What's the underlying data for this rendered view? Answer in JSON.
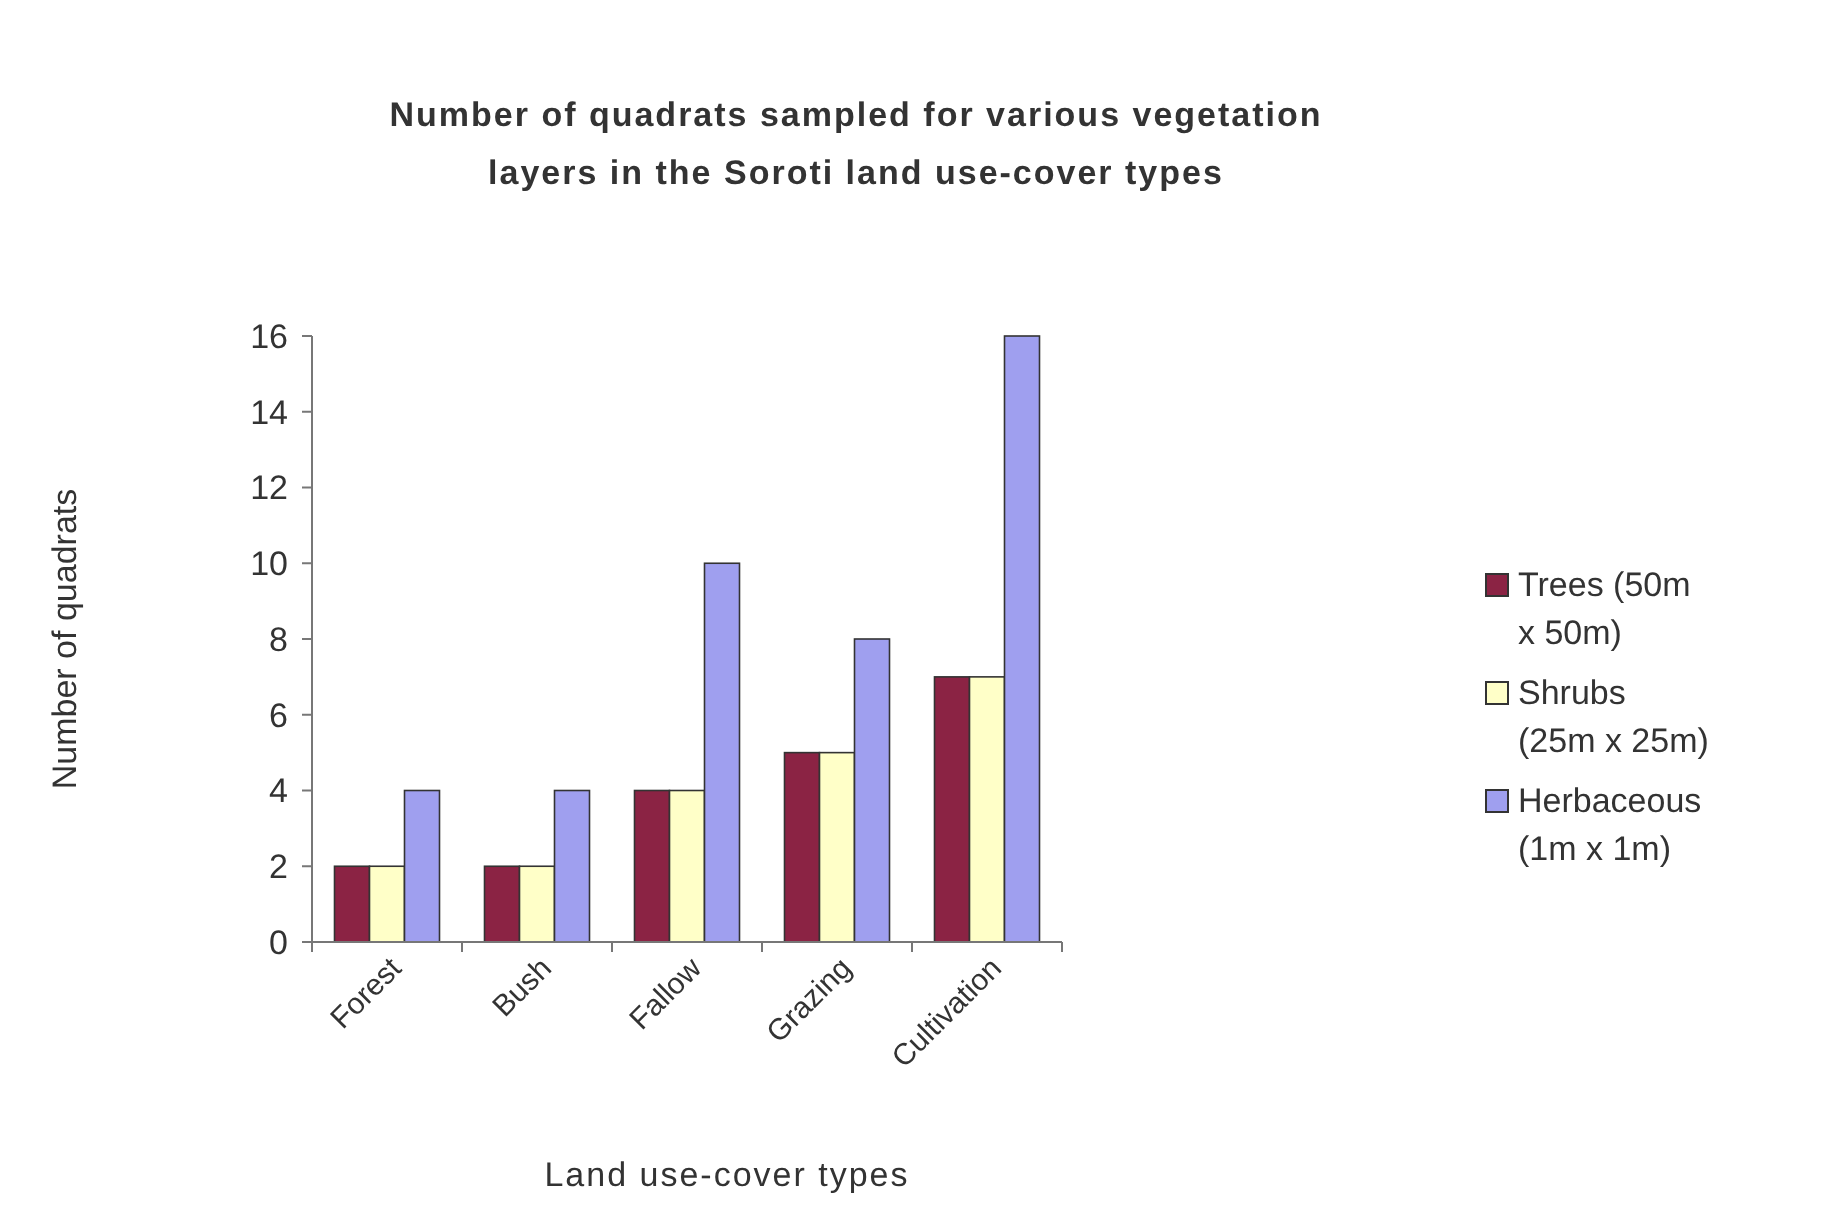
{
  "chart_data": {
    "type": "bar",
    "title": "Number of quadrats sampled for various vegetation layers in the Soroti land use-cover types",
    "xlabel": "Land use-cover types",
    "ylabel": "Number of quadrats",
    "categories": [
      "Forest",
      "Bush",
      "Fallow",
      "Grazing",
      "Cultivation"
    ],
    "series": [
      {
        "name": "Trees (50m x 50m)",
        "color": "#8b2344",
        "values": [
          2,
          2,
          4,
          5,
          7
        ]
      },
      {
        "name": "Shrubs (25m x 25m)",
        "color": "#ffffc8",
        "values": [
          2,
          2,
          4,
          5,
          7
        ]
      },
      {
        "name": "Herbaceous (1m x 1m)",
        "color": "#9f9fef",
        "values": [
          4,
          4,
          10,
          8,
          16
        ]
      }
    ],
    "ylim": [
      0,
      16
    ],
    "yticks": [
      0,
      2,
      4,
      6,
      8,
      10,
      12,
      14,
      16
    ],
    "grid": false,
    "legend": "right"
  }
}
